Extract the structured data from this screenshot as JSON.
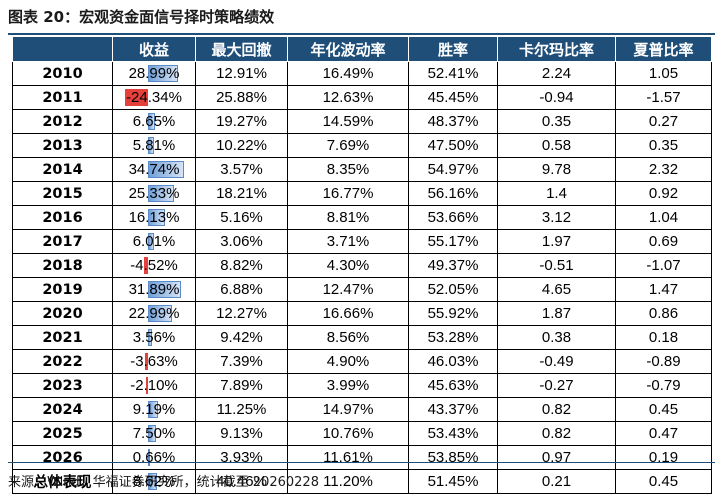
{
  "title": "图表 20：宏观资金面信号择时策略绩效",
  "columns": [
    "",
    "收益",
    "最大回撤",
    "年化波动率",
    "胜率",
    "卡尔玛比率",
    "夏普比率"
  ],
  "rows": [
    {
      "label": "2010",
      "ret": "28.99%",
      "ret_value": 28.99,
      "mdd": "12.91%",
      "vol": "16.49%",
      "win": "52.41%",
      "calmar": "2.24",
      "sharpe": "1.05"
    },
    {
      "label": "2011",
      "ret": "-24.34%",
      "ret_value": -24.34,
      "mdd": "25.88%",
      "vol": "12.63%",
      "win": "45.45%",
      "calmar": "-0.94",
      "sharpe": "-1.57"
    },
    {
      "label": "2012",
      "ret": "6.65%",
      "ret_value": 6.65,
      "mdd": "19.27%",
      "vol": "14.59%",
      "win": "48.37%",
      "calmar": "0.35",
      "sharpe": "0.27"
    },
    {
      "label": "2013",
      "ret": "5.81%",
      "ret_value": 5.81,
      "mdd": "10.22%",
      "vol": "7.69%",
      "win": "47.50%",
      "calmar": "0.58",
      "sharpe": "0.35"
    },
    {
      "label": "2014",
      "ret": "34.74%",
      "ret_value": 34.74,
      "mdd": "3.57%",
      "vol": "8.35%",
      "win": "54.97%",
      "calmar": "9.78",
      "sharpe": "2.32"
    },
    {
      "label": "2015",
      "ret": "25.33%",
      "ret_value": 25.33,
      "mdd": "18.21%",
      "vol": "16.77%",
      "win": "56.16%",
      "calmar": "1.4",
      "sharpe": "0.92"
    },
    {
      "label": "2016",
      "ret": "16.13%",
      "ret_value": 16.13,
      "mdd": "5.16%",
      "vol": "8.81%",
      "win": "53.66%",
      "calmar": "3.12",
      "sharpe": "1.04"
    },
    {
      "label": "2017",
      "ret": "6.01%",
      "ret_value": 6.01,
      "mdd": "3.06%",
      "vol": "3.71%",
      "win": "55.17%",
      "calmar": "1.97",
      "sharpe": "0.69"
    },
    {
      "label": "2018",
      "ret": "-4.52%",
      "ret_value": -4.52,
      "mdd": "8.82%",
      "vol": "4.30%",
      "win": "49.37%",
      "calmar": "-0.51",
      "sharpe": "-1.07"
    },
    {
      "label": "2019",
      "ret": "31.89%",
      "ret_value": 31.89,
      "mdd": "6.88%",
      "vol": "12.47%",
      "win": "52.05%",
      "calmar": "4.65",
      "sharpe": "1.47"
    },
    {
      "label": "2020",
      "ret": "22.99%",
      "ret_value": 22.99,
      "mdd": "12.27%",
      "vol": "16.66%",
      "win": "55.92%",
      "calmar": "1.87",
      "sharpe": "0.86"
    },
    {
      "label": "2021",
      "ret": "3.56%",
      "ret_value": 3.56,
      "mdd": "9.42%",
      "vol": "8.56%",
      "win": "53.28%",
      "calmar": "0.38",
      "sharpe": "0.18"
    },
    {
      "label": "2022",
      "ret": "-3.63%",
      "ret_value": -3.63,
      "mdd": "7.39%",
      "vol": "4.90%",
      "win": "46.03%",
      "calmar": "-0.49",
      "sharpe": "-0.89"
    },
    {
      "label": "2023",
      "ret": "-2.10%",
      "ret_value": -2.1,
      "mdd": "7.89%",
      "vol": "3.99%",
      "win": "45.63%",
      "calmar": "-0.27",
      "sharpe": "-0.79"
    },
    {
      "label": "2024",
      "ret": "9.19%",
      "ret_value": 9.19,
      "mdd": "11.25%",
      "vol": "14.97%",
      "win": "43.37%",
      "calmar": "0.82",
      "sharpe": "0.45"
    },
    {
      "label": "2025",
      "ret": "7.50%",
      "ret_value": 7.5,
      "mdd": "9.13%",
      "vol": "10.76%",
      "win": "53.43%",
      "calmar": "0.82",
      "sharpe": "0.47"
    },
    {
      "label": "2026",
      "ret": "0.66%",
      "ret_value": 0.66,
      "mdd": "3.93%",
      "vol": "11.61%",
      "win": "53.85%",
      "calmar": "0.97",
      "sharpe": "0.19"
    },
    {
      "label": "总体表现",
      "ret": "8.62%",
      "ret_value": 8.62,
      "mdd": "40.46%",
      "vol": "11.20%",
      "win": "51.45%",
      "calmar": "0.21",
      "sharpe": "0.45"
    }
  ],
  "colors": {
    "header_bg": "#1f4e79",
    "bar_positive": "#6f9fd8",
    "bar_negative": "#e5403b"
  },
  "source": "来源：Wind，华福证券研究所，统计截至 20260228"
}
